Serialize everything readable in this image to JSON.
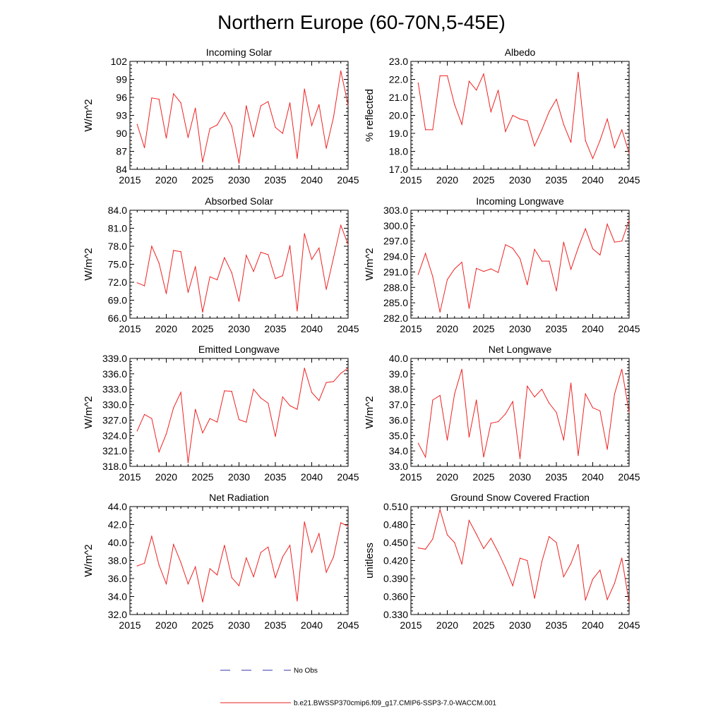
{
  "title": "Northern Europe (60-70N,5-45E)",
  "legend": {
    "obs_label": "No Obs",
    "obs_color": "#3333aa",
    "model_label": "b.e21.BWSSP370cmip6.f09_g17.CMIP6-SSP3-7.0-WACCM.001",
    "model_color": "#ee2222"
  },
  "chart_data": [
    {
      "type": "line",
      "title": "Incoming Solar",
      "ylabel": "W/m^2",
      "xlabel": "",
      "xlim": [
        2015,
        2045
      ],
      "ylim": [
        84,
        102
      ],
      "xticks": [
        "2015",
        "2020",
        "2025",
        "2030",
        "2035",
        "2040",
        "2045"
      ],
      "yticks": [
        "84",
        "87",
        "90",
        "93",
        "96",
        "99",
        "102"
      ],
      "series": [
        {
          "name": "b.e21.BWSSP370cmip6.f09_g17.CMIP6-SSP3-7.0-WACCM.001",
          "x": [
            2016,
            2017,
            2018,
            2019,
            2020,
            2021,
            2022,
            2023,
            2024,
            2025,
            2026,
            2027,
            2028,
            2029,
            2030,
            2031,
            2032,
            2033,
            2034,
            2035,
            2036,
            2037,
            2038,
            2039,
            2040,
            2041,
            2042,
            2043,
            2044,
            2045
          ],
          "values": [
            91.5,
            87.6,
            95.9,
            95.7,
            89.2,
            96.6,
            95.1,
            89.3,
            94.2,
            85.2,
            90.8,
            91.4,
            93.5,
            91.2,
            85.0,
            94.6,
            89.4,
            94.6,
            95.3,
            91.0,
            90.0,
            95.1,
            85.8,
            97.4,
            91.3,
            94.8,
            87.5,
            92.7,
            100.4,
            94.7
          ]
        }
      ]
    },
    {
      "type": "line",
      "title": "Albedo",
      "ylabel": "% reflected",
      "xlabel": "",
      "xlim": [
        2015,
        2045
      ],
      "ylim": [
        17.0,
        23.0
      ],
      "xticks": [
        "2015",
        "2020",
        "2025",
        "2030",
        "2035",
        "2040",
        "2045"
      ],
      "yticks": [
        "17.0",
        "18.0",
        "19.0",
        "20.0",
        "21.0",
        "22.0",
        "23.0"
      ],
      "series": [
        {
          "name": "b.e21.BWSSP370cmip6.f09_g17.CMIP6-SSP3-7.0-WACCM.001",
          "x": [
            2016,
            2017,
            2018,
            2019,
            2020,
            2021,
            2022,
            2023,
            2024,
            2025,
            2026,
            2027,
            2028,
            2029,
            2030,
            2031,
            2032,
            2033,
            2034,
            2035,
            2036,
            2037,
            2038,
            2039,
            2040,
            2041,
            2042,
            2043,
            2044,
            2045
          ],
          "values": [
            21.8,
            19.2,
            19.2,
            22.2,
            22.2,
            20.6,
            19.5,
            21.9,
            21.4,
            22.3,
            20.2,
            21.4,
            19.1,
            20.0,
            19.8,
            19.7,
            18.3,
            19.2,
            20.2,
            20.9,
            19.5,
            18.5,
            22.4,
            18.6,
            17.6,
            18.6,
            19.8,
            18.2,
            19.2,
            17.9
          ]
        }
      ]
    },
    {
      "type": "line",
      "title": "Absorbed Solar",
      "ylabel": "W/m^2",
      "xlabel": "",
      "xlim": [
        2015,
        2045
      ],
      "ylim": [
        66.0,
        84.0
      ],
      "xticks": [
        "2015",
        "2020",
        "2025",
        "2030",
        "2035",
        "2040",
        "2045"
      ],
      "yticks": [
        "66.0",
        "69.0",
        "72.0",
        "75.0",
        "78.0",
        "81.0",
        "84.0"
      ],
      "series": [
        {
          "name": "b.e21.BWSSP370cmip6.f09_g17.CMIP6-SSP3-7.0-WACCM.001",
          "x": [
            2016,
            2017,
            2018,
            2019,
            2020,
            2021,
            2022,
            2023,
            2024,
            2025,
            2026,
            2027,
            2028,
            2029,
            2030,
            2031,
            2032,
            2033,
            2034,
            2035,
            2036,
            2037,
            2038,
            2039,
            2040,
            2041,
            2042,
            2043,
            2044,
            2045
          ],
          "values": [
            71.9,
            71.4,
            78.0,
            75.2,
            70.1,
            77.3,
            77.1,
            70.3,
            74.6,
            67.0,
            72.9,
            72.4,
            76.1,
            73.6,
            68.8,
            76.5,
            73.8,
            77.0,
            76.6,
            72.6,
            73.1,
            78.1,
            67.2,
            80.1,
            75.8,
            77.7,
            70.8,
            76.1,
            81.5,
            78.3
          ]
        }
      ]
    },
    {
      "type": "line",
      "title": "Incoming Longwave",
      "ylabel": "W/m^2",
      "xlabel": "",
      "xlim": [
        2015,
        2045
      ],
      "ylim": [
        282.0,
        303.0
      ],
      "xticks": [
        "2015",
        "2020",
        "2025",
        "2030",
        "2035",
        "2040",
        "2045"
      ],
      "yticks": [
        "282.0",
        "285.0",
        "288.0",
        "291.0",
        "294.0",
        "297.0",
        "300.0",
        "303.0"
      ],
      "series": [
        {
          "name": "b.e21.BWSSP370cmip6.f09_g17.CMIP6-SSP3-7.0-WACCM.001",
          "x": [
            2016,
            2017,
            2018,
            2019,
            2020,
            2021,
            2022,
            2023,
            2024,
            2025,
            2026,
            2027,
            2028,
            2029,
            2030,
            2031,
            2032,
            2033,
            2034,
            2035,
            2036,
            2037,
            2038,
            2039,
            2040,
            2041,
            2042,
            2043,
            2044,
            2045
          ],
          "values": [
            290.5,
            294.6,
            290.1,
            283.2,
            289.5,
            291.6,
            292.9,
            283.9,
            291.7,
            291.1,
            291.6,
            290.9,
            296.3,
            295.6,
            293.6,
            288.5,
            295.4,
            293.1,
            293.1,
            287.3,
            296.8,
            291.5,
            295.7,
            299.4,
            295.5,
            294.3,
            300.3,
            296.8,
            297.0,
            301.0
          ]
        }
      ]
    },
    {
      "type": "line",
      "title": "Emitted Longwave",
      "ylabel": "W/m^2",
      "xlabel": "",
      "xlim": [
        2015,
        2045
      ],
      "ylim": [
        318.0,
        339.0
      ],
      "xticks": [
        "2015",
        "2020",
        "2025",
        "2030",
        "2035",
        "2040",
        "2045"
      ],
      "yticks": [
        "318.0",
        "321.0",
        "324.0",
        "327.0",
        "330.0",
        "333.0",
        "336.0",
        "339.0"
      ],
      "series": [
        {
          "name": "b.e21.BWSSP370cmip6.f09_g17.CMIP6-SSP3-7.0-WACCM.001",
          "x": [
            2016,
            2017,
            2018,
            2019,
            2020,
            2021,
            2022,
            2023,
            2024,
            2025,
            2026,
            2027,
            2028,
            2029,
            2030,
            2031,
            2032,
            2033,
            2034,
            2035,
            2036,
            2037,
            2038,
            2039,
            2040,
            2041,
            2042,
            2043,
            2044,
            2045
          ],
          "values": [
            324.9,
            328.1,
            327.3,
            320.8,
            324.3,
            329.4,
            332.4,
            318.7,
            329.1,
            324.5,
            327.3,
            326.6,
            332.7,
            332.6,
            327.1,
            326.6,
            333.0,
            331.3,
            330.3,
            323.8,
            331.5,
            329.8,
            329.1,
            337.1,
            332.4,
            330.8,
            334.3,
            334.5,
            336.1,
            337.1
          ]
        }
      ]
    },
    {
      "type": "line",
      "title": "Net Longwave",
      "ylabel": "W/m^2",
      "xlabel": "",
      "xlim": [
        2015,
        2045
      ],
      "ylim": [
        33.0,
        40.0
      ],
      "xticks": [
        "2015",
        "2020",
        "2025",
        "2030",
        "2035",
        "2040",
        "2045"
      ],
      "yticks": [
        "33.0",
        "34.0",
        "35.0",
        "36.0",
        "37.0",
        "38.0",
        "39.0",
        "40.0"
      ],
      "series": [
        {
          "name": "b.e21.BWSSP370cmip6.f09_g17.CMIP6-SSP3-7.0-WACCM.001",
          "x": [
            2016,
            2017,
            2018,
            2019,
            2020,
            2021,
            2022,
            2023,
            2024,
            2025,
            2026,
            2027,
            2028,
            2029,
            2030,
            2031,
            2032,
            2033,
            2034,
            2035,
            2036,
            2037,
            2038,
            2039,
            2040,
            2041,
            2042,
            2043,
            2044,
            2045
          ],
          "values": [
            34.5,
            33.6,
            37.3,
            37.6,
            34.7,
            37.7,
            39.3,
            34.9,
            37.3,
            33.6,
            35.8,
            35.9,
            36.4,
            37.2,
            33.5,
            38.2,
            37.5,
            38.0,
            37.1,
            36.5,
            34.7,
            38.4,
            33.7,
            37.7,
            36.8,
            36.6,
            34.1,
            37.7,
            39.3,
            36.5
          ]
        }
      ]
    },
    {
      "type": "line",
      "title": "Net Radiation",
      "ylabel": "W/m^2",
      "xlabel": "",
      "xlim": [
        2015,
        2045
      ],
      "ylim": [
        32.0,
        44.0
      ],
      "xticks": [
        "2015",
        "2020",
        "2025",
        "2030",
        "2035",
        "2040",
        "2045"
      ],
      "yticks": [
        "32.0",
        "34.0",
        "36.0",
        "38.0",
        "40.0",
        "42.0",
        "44.0"
      ],
      "series": [
        {
          "name": "b.e21.BWSSP370cmip6.f09_g17.CMIP6-SSP3-7.0-WACCM.001",
          "x": [
            2016,
            2017,
            2018,
            2019,
            2020,
            2021,
            2022,
            2023,
            2024,
            2025,
            2026,
            2027,
            2028,
            2029,
            2030,
            2031,
            2032,
            2033,
            2034,
            2035,
            2036,
            2037,
            2038,
            2039,
            2040,
            2041,
            2042,
            2043,
            2044,
            2045
          ],
          "values": [
            37.4,
            37.7,
            40.7,
            37.5,
            35.4,
            39.8,
            37.8,
            35.4,
            37.3,
            33.4,
            37.1,
            36.4,
            39.7,
            36.1,
            35.2,
            38.3,
            36.2,
            38.9,
            39.5,
            36.1,
            38.4,
            39.7,
            33.5,
            42.3,
            38.9,
            41.0,
            36.7,
            38.4,
            42.2,
            41.8
          ]
        }
      ]
    },
    {
      "type": "line",
      "title": "Ground Snow Covered Fraction",
      "ylabel": "unitless",
      "xlabel": "",
      "xlim": [
        2015,
        2045
      ],
      "ylim": [
        0.33,
        0.51
      ],
      "xticks": [
        "2015",
        "2020",
        "2025",
        "2030",
        "2035",
        "2040",
        "2045"
      ],
      "yticks": [
        "0.330",
        "0.360",
        "0.390",
        "0.420",
        "0.450",
        "0.480",
        "0.510"
      ],
      "series": [
        {
          "name": "b.e21.BWSSP370cmip6.f09_g17.CMIP6-SSP3-7.0-WACCM.001",
          "x": [
            2016,
            2017,
            2018,
            2019,
            2020,
            2021,
            2022,
            2023,
            2024,
            2025,
            2026,
            2027,
            2028,
            2029,
            2030,
            2031,
            2032,
            2033,
            2034,
            2035,
            2036,
            2037,
            2038,
            2039,
            2040,
            2041,
            2042,
            2043,
            2044,
            2045
          ],
          "values": [
            0.441,
            0.439,
            0.456,
            0.505,
            0.463,
            0.45,
            0.414,
            0.487,
            0.464,
            0.44,
            0.457,
            0.434,
            0.408,
            0.378,
            0.424,
            0.42,
            0.357,
            0.418,
            0.46,
            0.45,
            0.393,
            0.415,
            0.447,
            0.354,
            0.389,
            0.404,
            0.355,
            0.382,
            0.424,
            0.35
          ]
        }
      ]
    }
  ]
}
